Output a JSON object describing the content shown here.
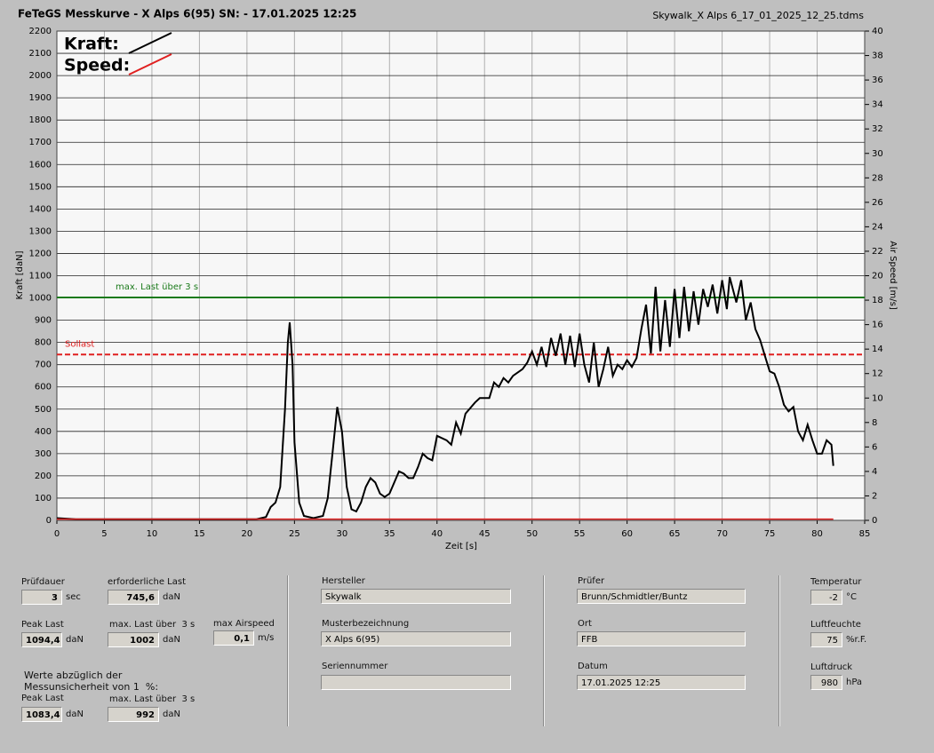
{
  "header": {
    "title": "FeTeGS Messkurve - X Alps 6(95)  SN:  - 17.01.2025 12:25",
    "file": "Skywalk_X Alps 6_17_01_2025_12_25.tdms"
  },
  "chart_data": {
    "type": "line",
    "x_label": "Zeit [s]",
    "y_label": "Kraft [daN]",
    "y2_label": "Air Speed [m/s]",
    "xlim": [
      0,
      85
    ],
    "xticks": [
      0,
      5,
      10,
      15,
      20,
      25,
      30,
      35,
      40,
      45,
      50,
      55,
      60,
      65,
      70,
      75,
      80,
      85
    ],
    "ylim": [
      0,
      2200
    ],
    "yticks": [
      0,
      100,
      200,
      300,
      400,
      500,
      600,
      700,
      800,
      900,
      1000,
      1100,
      1200,
      1300,
      1400,
      1500,
      1600,
      1700,
      1800,
      1900,
      2000,
      2100,
      2200
    ],
    "y2lim": [
      0,
      40
    ],
    "y2ticks": [
      0,
      2,
      4,
      6,
      8,
      10,
      12,
      14,
      16,
      18,
      20,
      22,
      24,
      26,
      28,
      30,
      32,
      34,
      36,
      38,
      40
    ],
    "grid": true,
    "legend": "upper left",
    "series": [
      {
        "name": "Kraft:",
        "color": "#000000",
        "x": [
          0,
          2,
          4,
          6,
          8,
          10,
          12,
          14,
          16,
          18,
          20,
          21,
          22,
          22.5,
          23,
          23.5,
          24,
          24.3,
          24.5,
          24.8,
          25,
          25.5,
          26,
          27,
          28,
          28.5,
          29,
          29.5,
          30,
          30.5,
          31,
          31.5,
          32,
          32.5,
          33,
          33.5,
          34,
          34.5,
          35,
          36,
          36.5,
          37,
          37.5,
          38,
          38.5,
          39,
          39.5,
          40,
          41,
          41.5,
          42,
          42.5,
          43,
          44,
          44.5,
          45,
          45.5,
          46,
          46.5,
          47,
          47.5,
          48,
          49,
          49.5,
          50,
          50.5,
          51,
          51.5,
          52,
          52.5,
          53,
          53.5,
          54,
          54.5,
          55,
          55.5,
          56,
          56.5,
          57,
          57.5,
          58,
          58.5,
          59,
          59.5,
          60,
          60.5,
          61,
          61.5,
          62,
          62.5,
          63,
          63.5,
          64,
          64.5,
          65,
          65.5,
          66,
          66.5,
          67,
          67.5,
          68,
          68.5,
          69,
          69.5,
          70,
          70.5,
          70.8,
          71.5,
          72,
          72.5,
          73,
          73.5,
          74,
          74.5,
          75,
          75.5,
          76,
          76.5,
          77,
          77.5,
          78,
          78.5,
          79,
          79.5,
          80,
          80.5,
          81,
          81.5,
          81.7
        ],
        "values": [
          10,
          5,
          5,
          5,
          5,
          5,
          5,
          5,
          5,
          5,
          5,
          5,
          15,
          60,
          80,
          150,
          500,
          800,
          890,
          700,
          350,
          80,
          20,
          10,
          20,
          100,
          300,
          510,
          400,
          150,
          50,
          40,
          80,
          150,
          190,
          170,
          120,
          105,
          120,
          220,
          210,
          190,
          190,
          240,
          300,
          280,
          270,
          380,
          360,
          340,
          440,
          390,
          480,
          530,
          550,
          550,
          550,
          620,
          600,
          640,
          620,
          650,
          680,
          710,
          760,
          700,
          780,
          690,
          820,
          740,
          840,
          700,
          830,
          690,
          840,
          700,
          620,
          800,
          600,
          680,
          780,
          650,
          700,
          680,
          720,
          690,
          730,
          860,
          970,
          750,
          1050,
          760,
          990,
          780,
          1040,
          820,
          1050,
          850,
          1030,
          880,
          1040,
          960,
          1060,
          930,
          1080,
          950,
          1094,
          980,
          1080,
          900,
          980,
          860,
          810,
          740,
          670,
          660,
          600,
          520,
          490,
          510,
          400,
          360,
          430,
          360,
          300,
          300,
          360,
          340,
          245
        ]
      },
      {
        "name": "Speed:",
        "color": "#e02020",
        "axis": "y2",
        "x": [
          0,
          81.7
        ],
        "values": [
          0.1,
          0.1
        ]
      }
    ],
    "reference_lines": [
      {
        "label": "max. Last über  3 s",
        "value": 1002,
        "color": "#1a7a1a"
      },
      {
        "label": "Sollast",
        "value": 745.6,
        "color": "#e02020",
        "dashed": true
      }
    ]
  },
  "fields": [
    {
      "label": "Prüfdauer",
      "value": "3",
      "unit": "sec"
    },
    {
      "label": "erforderliche Last",
      "value": "745,6",
      "unit": "daN"
    },
    {
      "label": "Peak Last",
      "value": "1094,4",
      "unit": "daN"
    },
    {
      "label": "max. Last über  3 s",
      "value": "1002",
      "unit": "daN"
    },
    {
      "label": "max Airspeed",
      "value": "0,1",
      "unit": "m/s"
    },
    {
      "label": "Peak Last",
      "value": "1083,4",
      "unit": "daN"
    },
    {
      "label": "max. Last über  3 s",
      "value": "992",
      "unit": "daN"
    },
    {
      "label": "Hersteller",
      "value": "Skywalk"
    },
    {
      "label": "Musterbezeichnung",
      "value": "X Alps 6(95)"
    },
    {
      "label": "Seriennummer"
    },
    {
      "label": "Prüfer",
      "value": "Brunn/Schmidtler/Buntz"
    },
    {
      "label": "Ort",
      "value": "FFB"
    },
    {
      "label": "Datum",
      "value": "17.01.2025 12:25"
    },
    {
      "label": "Temperatur",
      "value": "-2",
      "unit": "°C"
    },
    {
      "label": "Luftfeuchte",
      "value": "75",
      "unit": "%r.F."
    },
    {
      "label": "Luftdruck",
      "value": "980",
      "unit": "hPa"
    }
  ],
  "note": [
    "Werte abzüglich der",
    "Messunsicherheit von 1  %:"
  ]
}
